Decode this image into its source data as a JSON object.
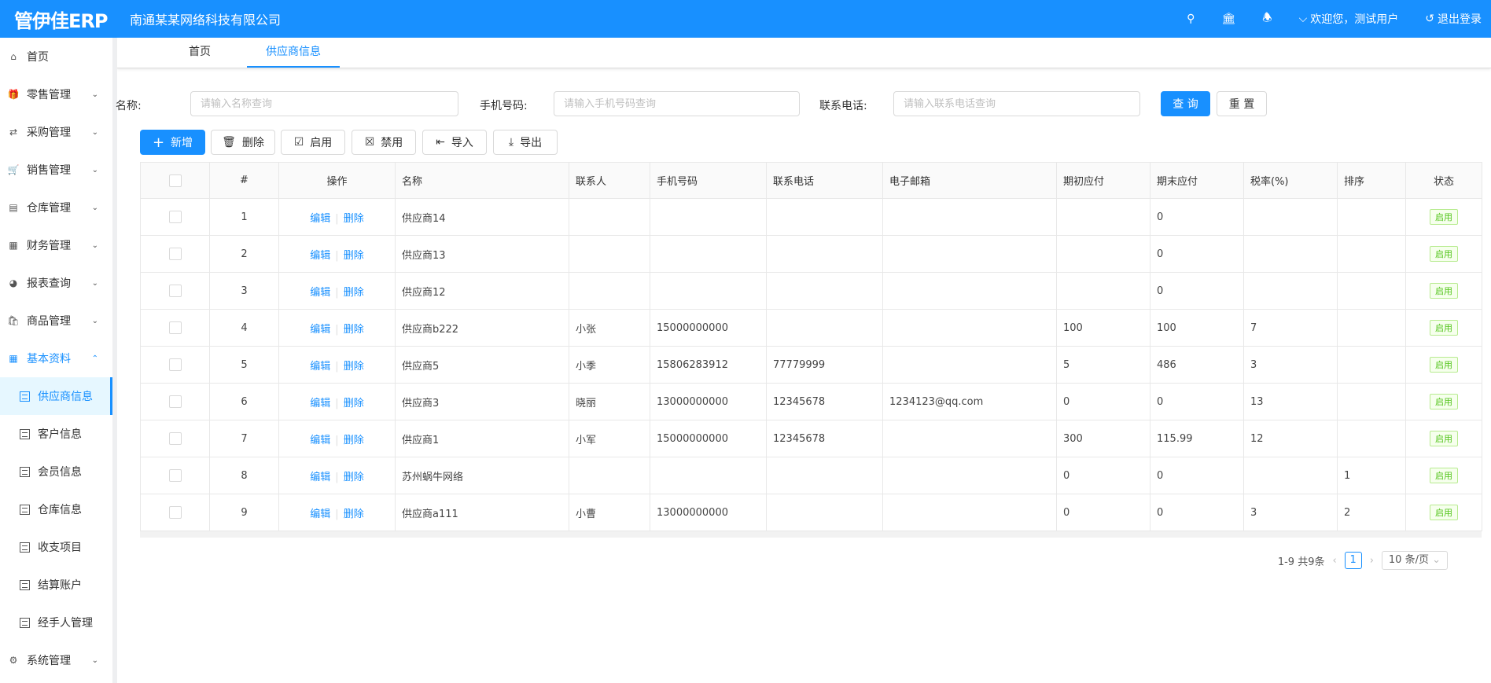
{
  "header": {
    "logo": "管伊佳ERP",
    "company": "南通某某网络科技有限公司",
    "welcome": "欢迎您，测试用户",
    "logout": "退出登录"
  },
  "sidebar": {
    "items": [
      {
        "label": "首页",
        "icon": "home-icon"
      },
      {
        "label": "零售管理",
        "icon": "gift-icon",
        "expandable": true
      },
      {
        "label": "采购管理",
        "icon": "swap-icon",
        "expandable": true
      },
      {
        "label": "销售管理",
        "icon": "cart-icon",
        "expandable": true
      },
      {
        "label": "仓库管理",
        "icon": "warehouse-icon",
        "expandable": true
      },
      {
        "label": "财务管理",
        "icon": "finance-icon",
        "expandable": true
      },
      {
        "label": "报表查询",
        "icon": "pie-chart-icon",
        "expandable": true
      },
      {
        "label": "商品管理",
        "icon": "shopping-bag-icon",
        "expandable": true
      },
      {
        "label": "基本资料",
        "icon": "grid-icon",
        "expandable": true,
        "open": true
      }
    ],
    "sub_items": [
      {
        "label": "供应商信息",
        "active": true
      },
      {
        "label": "客户信息"
      },
      {
        "label": "会员信息"
      },
      {
        "label": "仓库信息"
      },
      {
        "label": "收支项目"
      },
      {
        "label": "结算账户"
      },
      {
        "label": "经手人管理"
      }
    ],
    "last": {
      "label": "系统管理",
      "icon": "gear-icon"
    }
  },
  "tabs": [
    {
      "label": "首页"
    },
    {
      "label": "供应商信息",
      "active": true
    }
  ],
  "filter": {
    "name_label": "名称:",
    "name_placeholder": "请输入名称查询",
    "phone_label": "手机号码:",
    "phone_placeholder": "请输入手机号码查询",
    "tel_label": "联系电话:",
    "tel_placeholder": "请输入联系电话查询",
    "query": "查 询",
    "reset": "重 置"
  },
  "toolbar": {
    "add": "新增",
    "delete": "删除",
    "enable": "启用",
    "disable": "禁用",
    "import": "导入",
    "export": "导出"
  },
  "table": {
    "columns": [
      "#",
      "操作",
      "名称",
      "联系人",
      "手机号码",
      "联系电话",
      "电子邮箱",
      "期初应付",
      "期末应付",
      "税率(%)",
      "排序",
      "状态"
    ],
    "edit": "编辑",
    "remove": "删除",
    "rows": [
      {
        "n": "1",
        "name": "供应商14",
        "contact": "",
        "mobile": "",
        "tel": "",
        "email": "",
        "begin": "",
        "end": "0",
        "tax": "",
        "sort": "",
        "status": "启用"
      },
      {
        "n": "2",
        "name": "供应商13",
        "contact": "",
        "mobile": "",
        "tel": "",
        "email": "",
        "begin": "",
        "end": "0",
        "tax": "",
        "sort": "",
        "status": "启用"
      },
      {
        "n": "3",
        "name": "供应商12",
        "contact": "",
        "mobile": "",
        "tel": "",
        "email": "",
        "begin": "",
        "end": "0",
        "tax": "",
        "sort": "",
        "status": "启用"
      },
      {
        "n": "4",
        "name": "供应商b222",
        "contact": "小张",
        "mobile": "15000000000",
        "tel": "",
        "email": "",
        "begin": "100",
        "end": "100",
        "tax": "7",
        "sort": "",
        "status": "启用"
      },
      {
        "n": "5",
        "name": "供应商5",
        "contact": "小季",
        "mobile": "15806283912",
        "tel": "77779999",
        "email": "",
        "begin": "5",
        "end": "486",
        "tax": "3",
        "sort": "",
        "status": "启用"
      },
      {
        "n": "6",
        "name": "供应商3",
        "contact": "晓丽",
        "mobile": "13000000000",
        "tel": "12345678",
        "email": "1234123@qq.com",
        "begin": "0",
        "end": "0",
        "tax": "13",
        "sort": "",
        "status": "启用"
      },
      {
        "n": "7",
        "name": "供应商1",
        "contact": "小军",
        "mobile": "15000000000",
        "tel": "12345678",
        "email": "",
        "begin": "300",
        "end": "115.99",
        "tax": "12",
        "sort": "",
        "status": "启用"
      },
      {
        "n": "8",
        "name": "苏州蜗牛网络",
        "contact": "",
        "mobile": "",
        "tel": "",
        "email": "",
        "begin": "0",
        "end": "0",
        "tax": "",
        "sort": "1",
        "status": "启用"
      },
      {
        "n": "9",
        "name": "供应商a111",
        "contact": "小曹",
        "mobile": "13000000000",
        "tel": "",
        "email": "",
        "begin": "0",
        "end": "0",
        "tax": "3",
        "sort": "2",
        "status": "启用"
      }
    ]
  },
  "pagination": {
    "summary": "1-9 共9条",
    "current": "1",
    "page_size": "10 条/页"
  },
  "colors": {
    "primary": "#1890ff",
    "success": "#52c41a"
  }
}
